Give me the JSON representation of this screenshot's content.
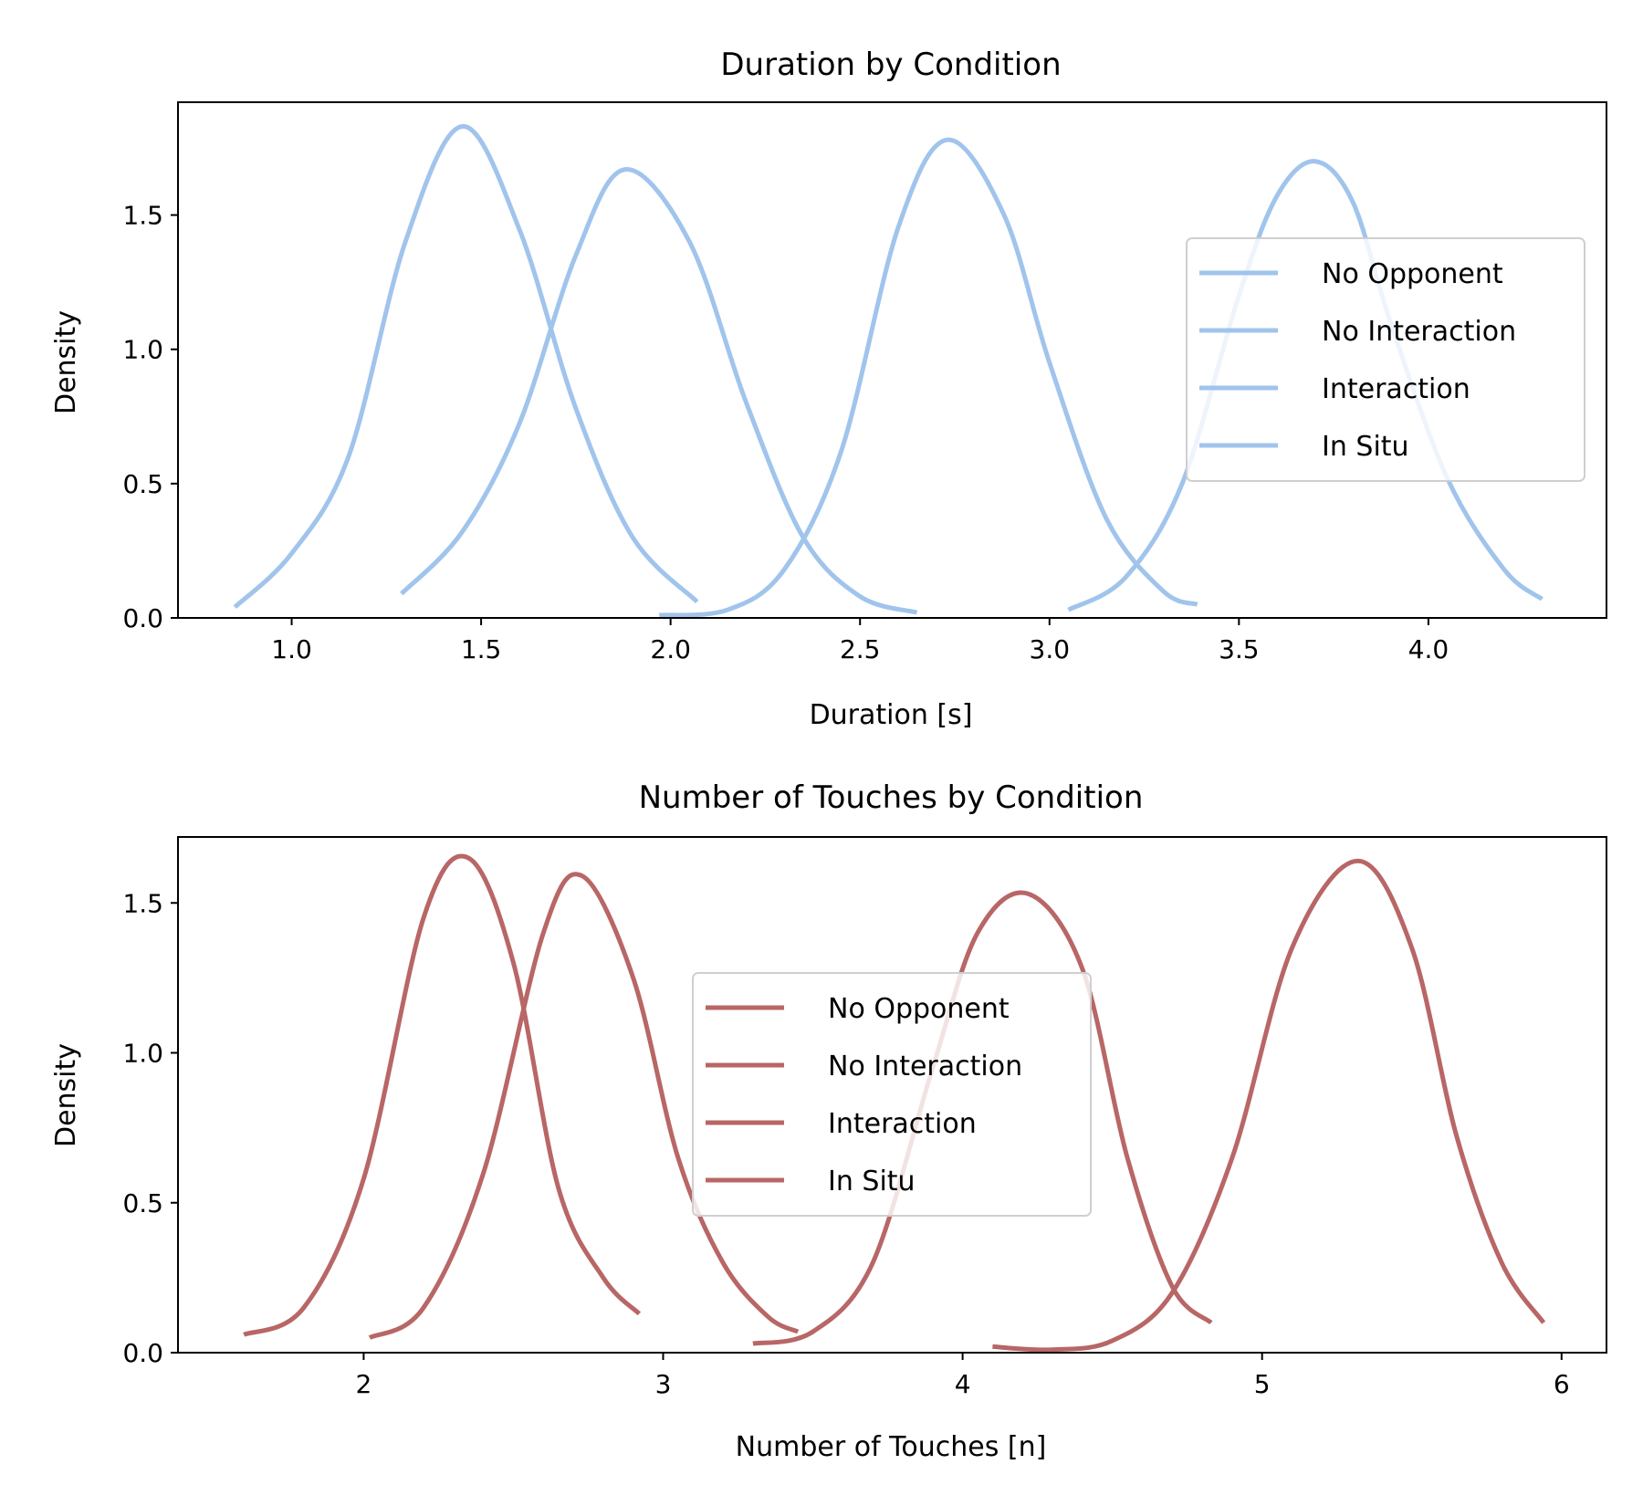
{
  "chart_data": [
    {
      "type": "line",
      "title": "Duration by Condition",
      "xlabel": "Duration [s]",
      "ylabel": "Density",
      "xlim": [
        0.7,
        4.47
      ],
      "ylim": [
        0.0,
        1.92
      ],
      "xticks": [
        1.0,
        1.5,
        2.0,
        2.5,
        3.0,
        3.5,
        4.0
      ],
      "xtick_labels": [
        "1.0",
        "1.5",
        "2.0",
        "2.5",
        "3.0",
        "3.5",
        "4.0"
      ],
      "yticks": [
        0.0,
        0.5,
        1.0,
        1.5
      ],
      "ytick_labels": [
        "0.0",
        "0.5",
        "1.0",
        "1.5"
      ],
      "color": "#a0c4ec",
      "grid": false,
      "legend_position": "center-right",
      "series": [
        {
          "name": "No Opponent",
          "x": [
            0.85,
            1.0,
            1.15,
            1.3,
            1.45,
            1.6,
            1.75,
            1.9,
            2.07
          ],
          "y": [
            0.04,
            0.24,
            0.6,
            1.4,
            1.83,
            1.45,
            0.78,
            0.3,
            0.06
          ]
        },
        {
          "name": "No Interaction",
          "x": [
            1.29,
            1.45,
            1.6,
            1.75,
            1.88,
            2.05,
            2.2,
            2.35,
            2.5,
            2.65
          ],
          "y": [
            0.09,
            0.32,
            0.72,
            1.35,
            1.67,
            1.4,
            0.8,
            0.3,
            0.08,
            0.02
          ]
        },
        {
          "name": "Interaction",
          "x": [
            1.97,
            2.15,
            2.3,
            2.45,
            2.6,
            2.73,
            2.88,
            3.0,
            3.15,
            3.3,
            3.39
          ],
          "y": [
            0.01,
            0.03,
            0.18,
            0.62,
            1.45,
            1.78,
            1.5,
            0.95,
            0.37,
            0.1,
            0.05
          ]
        },
        {
          "name": "In Situ",
          "x": [
            3.05,
            3.2,
            3.35,
            3.5,
            3.6,
            3.7,
            3.8,
            3.9,
            4.05,
            4.2,
            4.3
          ],
          "y": [
            0.03,
            0.15,
            0.5,
            1.2,
            1.57,
            1.7,
            1.55,
            1.1,
            0.52,
            0.18,
            0.07
          ]
        }
      ]
    },
    {
      "type": "line",
      "title": "Number of Touches by Condition",
      "xlabel": "Number of Touches [n]",
      "ylabel": "Density",
      "xlim": [
        1.38,
        6.15
      ],
      "ylim": [
        0.0,
        1.72
      ],
      "xticks": [
        2,
        3,
        4,
        5,
        6
      ],
      "xtick_labels": [
        "2",
        "3",
        "4",
        "5",
        "6"
      ],
      "yticks": [
        0.0,
        0.5,
        1.0,
        1.5
      ],
      "ytick_labels": [
        "0.0",
        "0.5",
        "1.0",
        "1.5"
      ],
      "color": "#b86666",
      "grid": false,
      "legend_position": "center",
      "series": [
        {
          "name": "No Opponent",
          "x": [
            1.6,
            1.8,
            2.0,
            2.2,
            2.35,
            2.5,
            2.65,
            2.8,
            2.92
          ],
          "y": [
            0.06,
            0.15,
            0.58,
            1.45,
            1.65,
            1.3,
            0.55,
            0.25,
            0.13
          ]
        },
        {
          "name": "No Interaction",
          "x": [
            2.02,
            2.2,
            2.4,
            2.6,
            2.73,
            2.9,
            3.05,
            3.2,
            3.35,
            3.45
          ],
          "y": [
            0.05,
            0.15,
            0.6,
            1.4,
            1.59,
            1.25,
            0.65,
            0.3,
            0.12,
            0.07
          ]
        },
        {
          "name": "Interaction",
          "x": [
            3.3,
            3.5,
            3.7,
            3.9,
            4.05,
            4.22,
            4.4,
            4.55,
            4.7,
            4.83
          ],
          "y": [
            0.03,
            0.07,
            0.3,
            0.95,
            1.4,
            1.53,
            1.28,
            0.65,
            0.22,
            0.1
          ]
        },
        {
          "name": "In Situ",
          "x": [
            4.1,
            4.3,
            4.5,
            4.7,
            4.9,
            5.1,
            5.32,
            5.5,
            5.65,
            5.8,
            5.94
          ],
          "y": [
            0.02,
            0.01,
            0.04,
            0.2,
            0.65,
            1.35,
            1.64,
            1.35,
            0.72,
            0.3,
            0.1
          ]
        }
      ]
    }
  ]
}
